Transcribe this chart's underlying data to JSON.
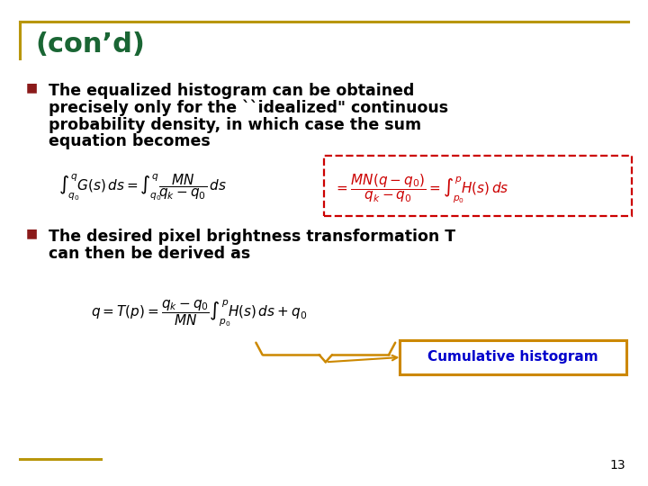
{
  "bg_color": "#ffffff",
  "title": "(con’d)",
  "title_color": "#1a6634",
  "title_fontsize": 22,
  "border_color": "#b8960c",
  "bullet_color": "#8b1a1a",
  "bullet1_line1": "The equalized histogram can be obtained",
  "bullet1_line2": "precisely only for the ``idealized\" continuous",
  "bullet1_line3": "probability density, in which case the sum",
  "bullet1_line4": "equation becomes",
  "bullet2_line1": "The desired pixel brightness transformation T",
  "bullet2_line2": "can then be derived as",
  "eq1_left": "$\\int_{q_0}^{q}\\! G(s)\\,ds = \\int_{q_0}^{q}\\! \\dfrac{MN}{q_k - q_0}\\,ds$",
  "eq1_right": "$= \\dfrac{MN(q-q_0)}{q_k - q_0} = \\int_{p_0}^{p}\\! H(s)\\,ds$",
  "eq2": "$q = T(p) = \\dfrac{q_k - q_0}{MN}\\int_{p_0}^{p}\\! H(s)\\,ds + q_0$",
  "dashed_box_color": "#cc0000",
  "cumhist_label": "Cumulative histogram",
  "cumhist_color": "#0000cc",
  "cumhist_box_color": "#cc8800",
  "page_num": "13",
  "text_color": "#000000",
  "eq_fontsize": 11,
  "body_fontsize": 12.5
}
